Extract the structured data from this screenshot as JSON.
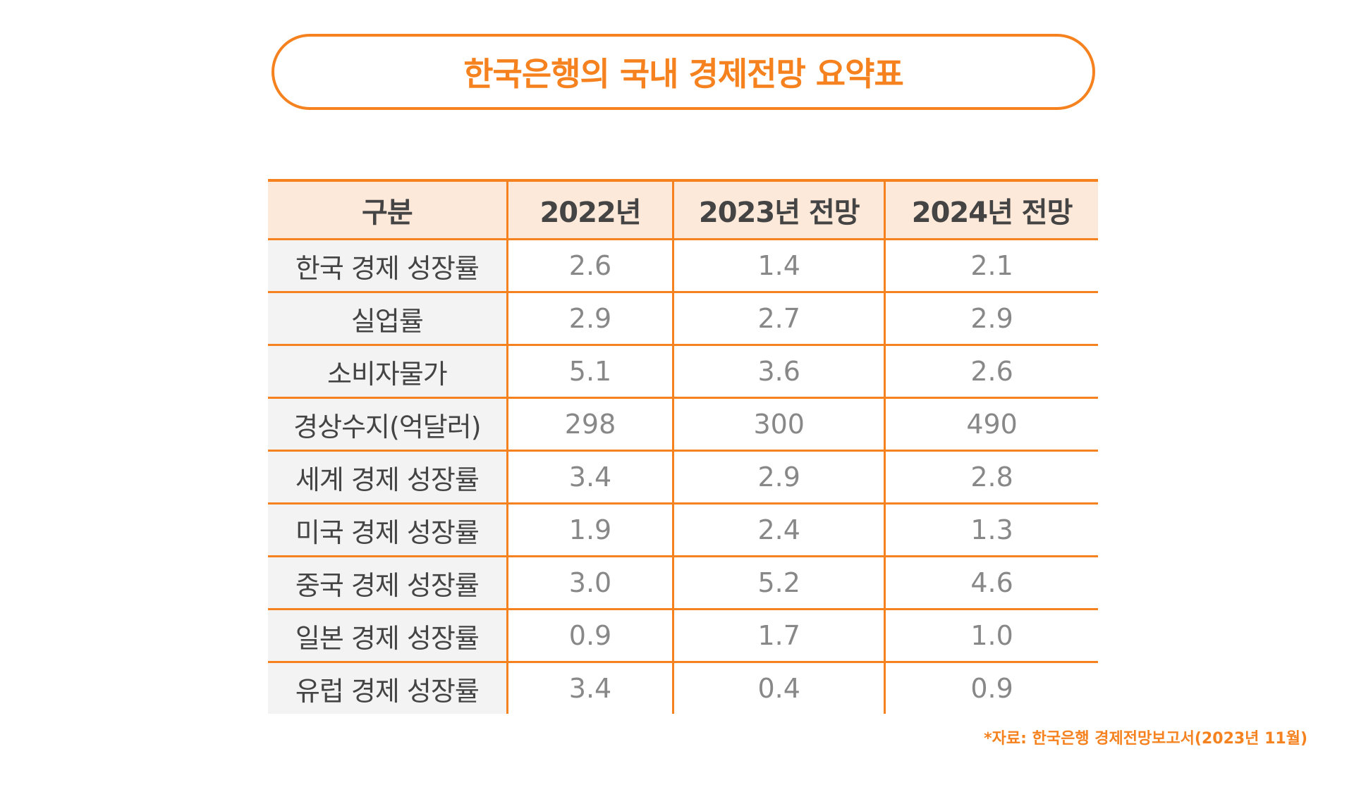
{
  "title": "한국은행의 국내 경제전망 요약표",
  "table": {
    "headers": [
      "구분",
      "2022년",
      "2023년 전망",
      "2024년 전망"
    ],
    "rows": [
      {
        "label": "한국 경제 성장률",
        "values": [
          "2.6",
          "1.4",
          "2.1"
        ]
      },
      {
        "label": "실업률",
        "values": [
          "2.9",
          "2.7",
          "2.9"
        ]
      },
      {
        "label": "소비자물가",
        "values": [
          "5.1",
          "3.6",
          "2.6"
        ]
      },
      {
        "label": "경상수지(억달러)",
        "values": [
          "298",
          "300",
          "490"
        ]
      },
      {
        "label": "세계 경제 성장률",
        "values": [
          "3.4",
          "2.9",
          "2.8"
        ]
      },
      {
        "label": "미국 경제 성장률",
        "values": [
          "1.9",
          "2.4",
          "1.3"
        ]
      },
      {
        "label": "중국 경제 성장률",
        "values": [
          "3.0",
          "5.2",
          "4.6"
        ]
      },
      {
        "label": "일본 경제 성장률",
        "values": [
          "0.9",
          "1.7",
          "1.0"
        ]
      },
      {
        "label": "유럽 경제 성장률",
        "values": [
          "3.4",
          "0.4",
          "0.9"
        ]
      }
    ]
  },
  "source": "*자료: 한국은행 경제전망보고서(2023년 11월)",
  "colors": {
    "accent": "#f5821f",
    "header_bg": "#fde9d9",
    "label_bg": "#f3f3f3",
    "label_text": "#444444",
    "value_text": "#888888"
  }
}
